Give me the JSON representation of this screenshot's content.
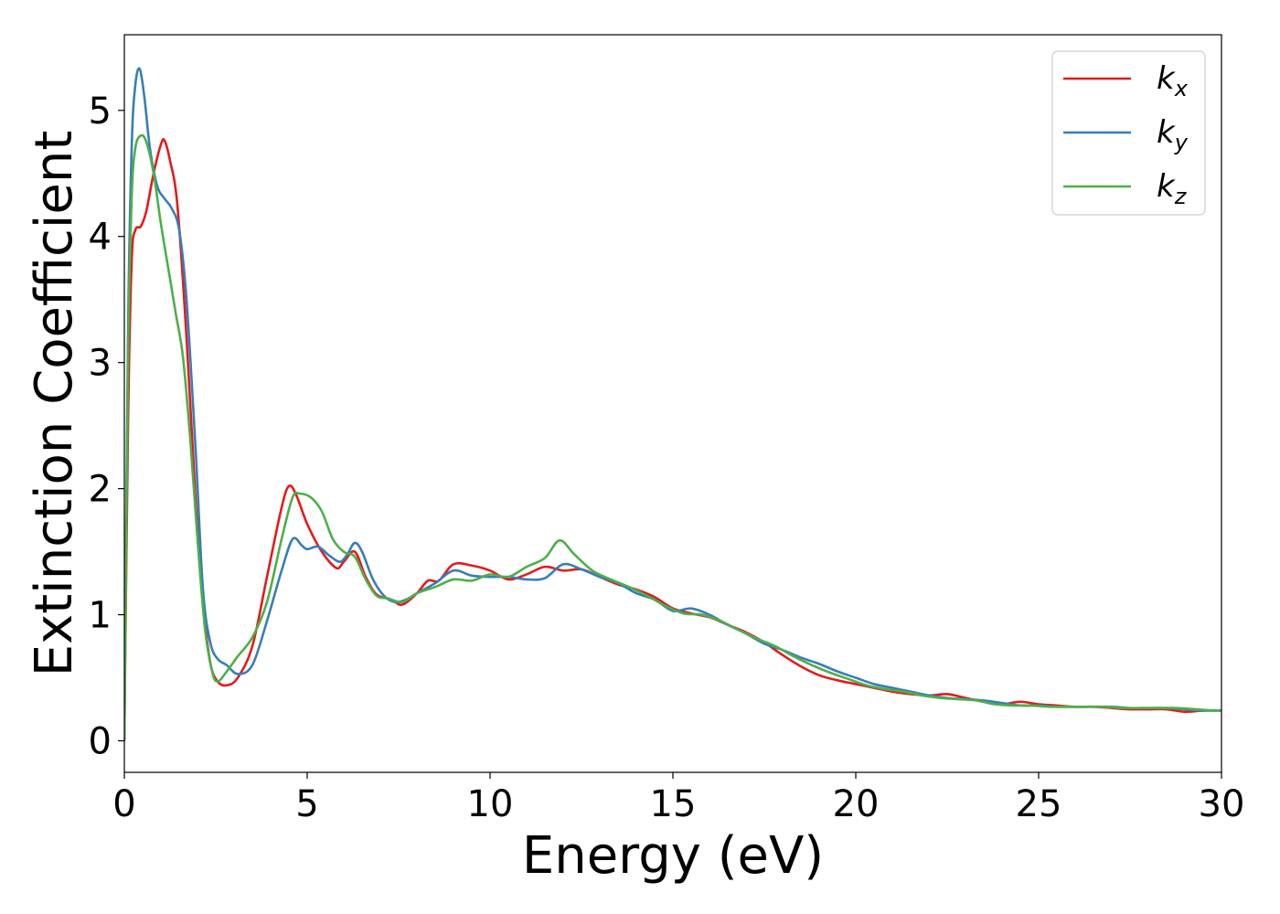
{
  "chart_data": {
    "type": "line",
    "xlabel": "Energy (eV)",
    "ylabel": "Extinction Coefficient",
    "xlim": [
      0,
      30
    ],
    "ylim": [
      -0.25,
      5.6
    ],
    "xticks": [
      0,
      5,
      10,
      15,
      20,
      25,
      30
    ],
    "yticks": [
      0,
      1,
      2,
      3,
      4,
      5
    ],
    "grid": false,
    "legend_position": "top-right",
    "series": [
      {
        "name": "kx",
        "label_base": "k",
        "label_sub": "x",
        "color": "#e41a1c",
        "x": [
          0,
          0.1,
          0.2,
          0.3,
          0.45,
          0.6,
          0.8,
          1.0,
          1.1,
          1.25,
          1.45,
          1.7,
          1.95,
          2.15,
          2.35,
          2.55,
          2.8,
          3.1,
          3.5,
          3.9,
          4.3,
          4.5,
          4.7,
          5.0,
          5.4,
          5.8,
          6.0,
          6.3,
          6.6,
          6.9,
          7.3,
          7.6,
          8.0,
          8.3,
          8.6,
          9.0,
          9.5,
          10.0,
          10.5,
          11.0,
          11.5,
          12.0,
          12.5,
          13.0,
          13.5,
          14.0,
          14.5,
          15.0,
          15.5,
          16.0,
          16.5,
          17.0,
          17.5,
          18.0,
          18.5,
          19.0,
          19.5,
          20.0,
          20.5,
          21.0,
          21.5,
          22.0,
          22.5,
          23.0,
          23.5,
          24.0,
          24.5,
          25.0,
          25.5,
          26.0,
          26.5,
          27.0,
          27.5,
          28.0,
          28.5,
          29.0,
          29.5,
          30.0
        ],
        "y": [
          0.0,
          2.5,
          3.8,
          4.05,
          4.08,
          4.2,
          4.5,
          4.73,
          4.76,
          4.6,
          4.25,
          3.2,
          1.9,
          1.1,
          0.62,
          0.47,
          0.44,
          0.5,
          0.75,
          1.3,
          1.85,
          2.02,
          1.95,
          1.72,
          1.5,
          1.37,
          1.42,
          1.5,
          1.3,
          1.16,
          1.12,
          1.08,
          1.17,
          1.27,
          1.27,
          1.4,
          1.39,
          1.35,
          1.28,
          1.32,
          1.38,
          1.35,
          1.36,
          1.3,
          1.24,
          1.2,
          1.14,
          1.05,
          1.01,
          0.98,
          0.92,
          0.86,
          0.78,
          0.68,
          0.59,
          0.52,
          0.48,
          0.45,
          0.42,
          0.39,
          0.37,
          0.36,
          0.37,
          0.34,
          0.31,
          0.29,
          0.31,
          0.29,
          0.28,
          0.27,
          0.27,
          0.26,
          0.25,
          0.25,
          0.25,
          0.23,
          0.24,
          0.24
        ]
      },
      {
        "name": "ky",
        "label_base": "k",
        "label_sub": "y",
        "color": "#377eb8",
        "x": [
          0,
          0.1,
          0.2,
          0.3,
          0.42,
          0.55,
          0.7,
          0.9,
          1.1,
          1.3,
          1.5,
          1.7,
          1.95,
          2.15,
          2.35,
          2.55,
          2.8,
          3.1,
          3.5,
          3.9,
          4.3,
          4.6,
          4.85,
          5.0,
          5.3,
          5.6,
          5.9,
          6.1,
          6.3,
          6.5,
          6.8,
          7.1,
          7.4,
          7.7,
          8.0,
          8.5,
          9.0,
          9.5,
          10.0,
          10.5,
          11.0,
          11.5,
          12.0,
          12.5,
          13.0,
          13.5,
          14.0,
          14.5,
          15.0,
          15.5,
          16.0,
          16.5,
          17.0,
          17.5,
          18.0,
          18.5,
          19.0,
          19.5,
          20.0,
          20.5,
          21.0,
          21.5,
          22.0,
          22.5,
          23.0,
          23.5,
          24.0,
          24.5,
          25.0,
          25.5,
          26.0,
          26.5,
          27.0,
          27.5,
          28.0,
          28.5,
          29.0,
          29.5,
          30.0
        ],
        "y": [
          0.0,
          3.2,
          4.7,
          5.2,
          5.33,
          5.1,
          4.7,
          4.4,
          4.3,
          4.22,
          4.05,
          3.5,
          2.3,
          1.2,
          0.78,
          0.65,
          0.6,
          0.53,
          0.6,
          0.95,
          1.35,
          1.6,
          1.55,
          1.52,
          1.54,
          1.47,
          1.42,
          1.48,
          1.57,
          1.5,
          1.28,
          1.15,
          1.1,
          1.12,
          1.17,
          1.25,
          1.35,
          1.31,
          1.3,
          1.3,
          1.28,
          1.29,
          1.4,
          1.36,
          1.3,
          1.25,
          1.17,
          1.12,
          1.03,
          1.05,
          1.0,
          0.92,
          0.85,
          0.77,
          0.72,
          0.66,
          0.61,
          0.55,
          0.5,
          0.45,
          0.42,
          0.39,
          0.36,
          0.34,
          0.33,
          0.32,
          0.3,
          0.28,
          0.28,
          0.27,
          0.27,
          0.27,
          0.27,
          0.26,
          0.26,
          0.26,
          0.25,
          0.24,
          0.24
        ]
      },
      {
        "name": "kz",
        "label_base": "k",
        "label_sub": "z",
        "color": "#4daf4a",
        "x": [
          0,
          0.1,
          0.2,
          0.3,
          0.45,
          0.6,
          0.8,
          1.0,
          1.2,
          1.4,
          1.6,
          1.8,
          2.0,
          2.2,
          2.4,
          2.55,
          2.8,
          3.1,
          3.5,
          3.9,
          4.3,
          4.6,
          4.8,
          5.1,
          5.4,
          5.7,
          6.0,
          6.3,
          6.6,
          6.9,
          7.2,
          7.6,
          8.0,
          8.5,
          9.0,
          9.5,
          10.0,
          10.5,
          11.0,
          11.5,
          11.9,
          12.3,
          12.8,
          13.3,
          13.8,
          14.3,
          14.8,
          15.3,
          15.8,
          16.3,
          16.8,
          17.3,
          17.8,
          18.3,
          18.8,
          19.3,
          19.8,
          20.3,
          20.8,
          21.3,
          21.8,
          22.3,
          22.8,
          23.3,
          23.8,
          24.3,
          24.8,
          25.3,
          25.8,
          26.3,
          26.8,
          27.3,
          27.8,
          28.3,
          28.8,
          29.3,
          29.8,
          30.0
        ],
        "y": [
          0.0,
          3.0,
          4.3,
          4.7,
          4.8,
          4.75,
          4.5,
          4.1,
          3.75,
          3.4,
          3.05,
          2.4,
          1.6,
          0.9,
          0.55,
          0.47,
          0.55,
          0.67,
          0.82,
          1.1,
          1.6,
          1.93,
          1.96,
          1.93,
          1.82,
          1.6,
          1.5,
          1.46,
          1.28,
          1.15,
          1.13,
          1.1,
          1.17,
          1.22,
          1.28,
          1.27,
          1.32,
          1.3,
          1.38,
          1.45,
          1.59,
          1.48,
          1.35,
          1.28,
          1.22,
          1.15,
          1.07,
          1.01,
          1.0,
          0.95,
          0.88,
          0.81,
          0.75,
          0.67,
          0.6,
          0.54,
          0.49,
          0.44,
          0.41,
          0.39,
          0.36,
          0.34,
          0.33,
          0.32,
          0.29,
          0.28,
          0.28,
          0.27,
          0.27,
          0.27,
          0.27,
          0.26,
          0.26,
          0.26,
          0.26,
          0.25,
          0.24,
          0.24
        ]
      }
    ]
  }
}
